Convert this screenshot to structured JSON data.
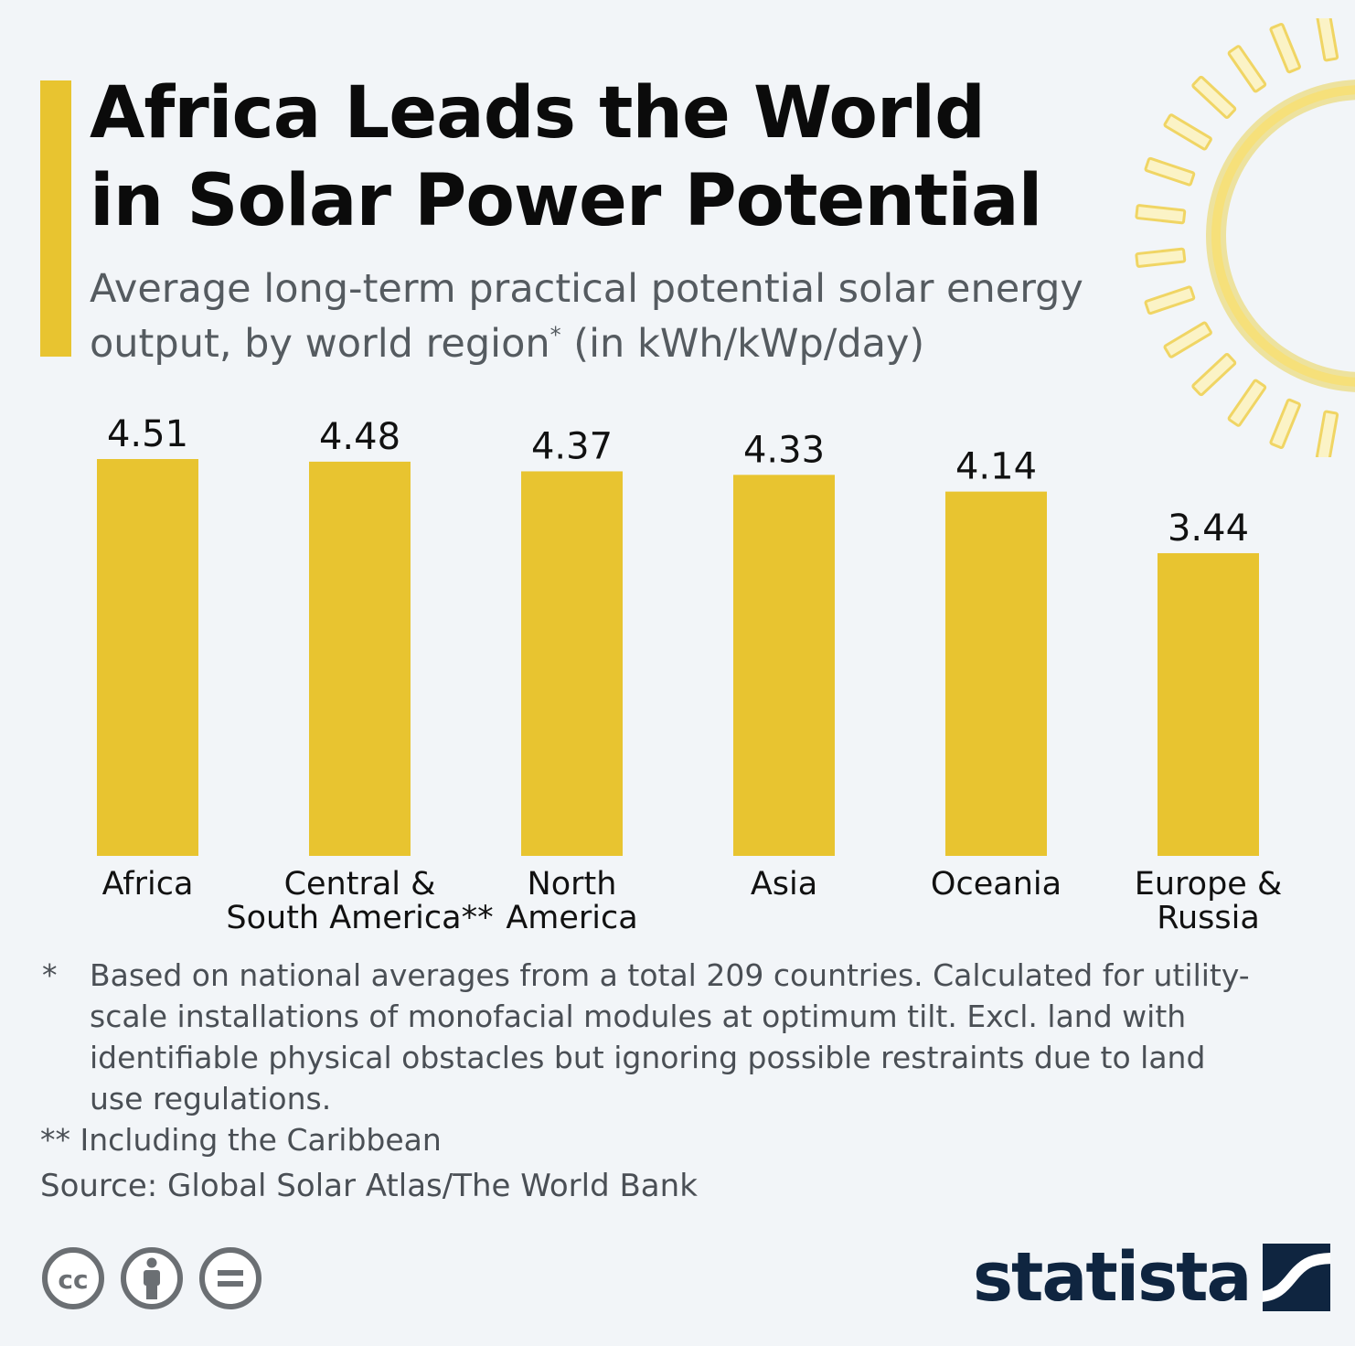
{
  "header": {
    "title_line1": "Africa Leads the World",
    "title_line2": "in Solar Power Potential",
    "subtitle_part1": "Average long-term practical potential solar energy output, by world region",
    "subtitle_mark": "*",
    "subtitle_part2": " (in kWh/kWp/day)"
  },
  "colors": {
    "accent": "#e8c430",
    "bar": "#e8c430",
    "background": "#f2f5f8",
    "brand": "#0f2540"
  },
  "chart_data": {
    "type": "bar",
    "categories": [
      "Africa",
      "Central & South America**",
      "North America",
      "Asia",
      "Oceania",
      "Europe & Russia"
    ],
    "category_lines": [
      [
        "Africa"
      ],
      [
        "Central &",
        "South America**"
      ],
      [
        "North",
        "America"
      ],
      [
        "Asia"
      ],
      [
        "Oceania"
      ],
      [
        "Europe &",
        "Russia"
      ]
    ],
    "values": [
      4.51,
      4.48,
      4.37,
      4.33,
      4.14,
      3.44
    ],
    "value_labels": [
      "4.51",
      "4.48",
      "4.37",
      "4.33",
      "4.14",
      "3.44"
    ],
    "ylim": [
      0,
      4.51
    ],
    "grid": false,
    "legend": "none"
  },
  "footnotes": {
    "note1_mark": "*",
    "note1_text": "Based on national averages from a total 209 countries. Calculated for utility-scale installations of monofacial modules at optimum tilt. Excl. land with identifiable physical obstacles but ignoring possible restraints due to land use regulations.",
    "note2": "** Including the Caribbean"
  },
  "source": "Source: Global Solar Atlas/The World Bank",
  "license_icons": [
    "creative-commons-icon",
    "attribution-icon",
    "no-derivatives-icon"
  ],
  "brand": {
    "name": "statista",
    "logo_icon": "statista-logo-icon"
  }
}
